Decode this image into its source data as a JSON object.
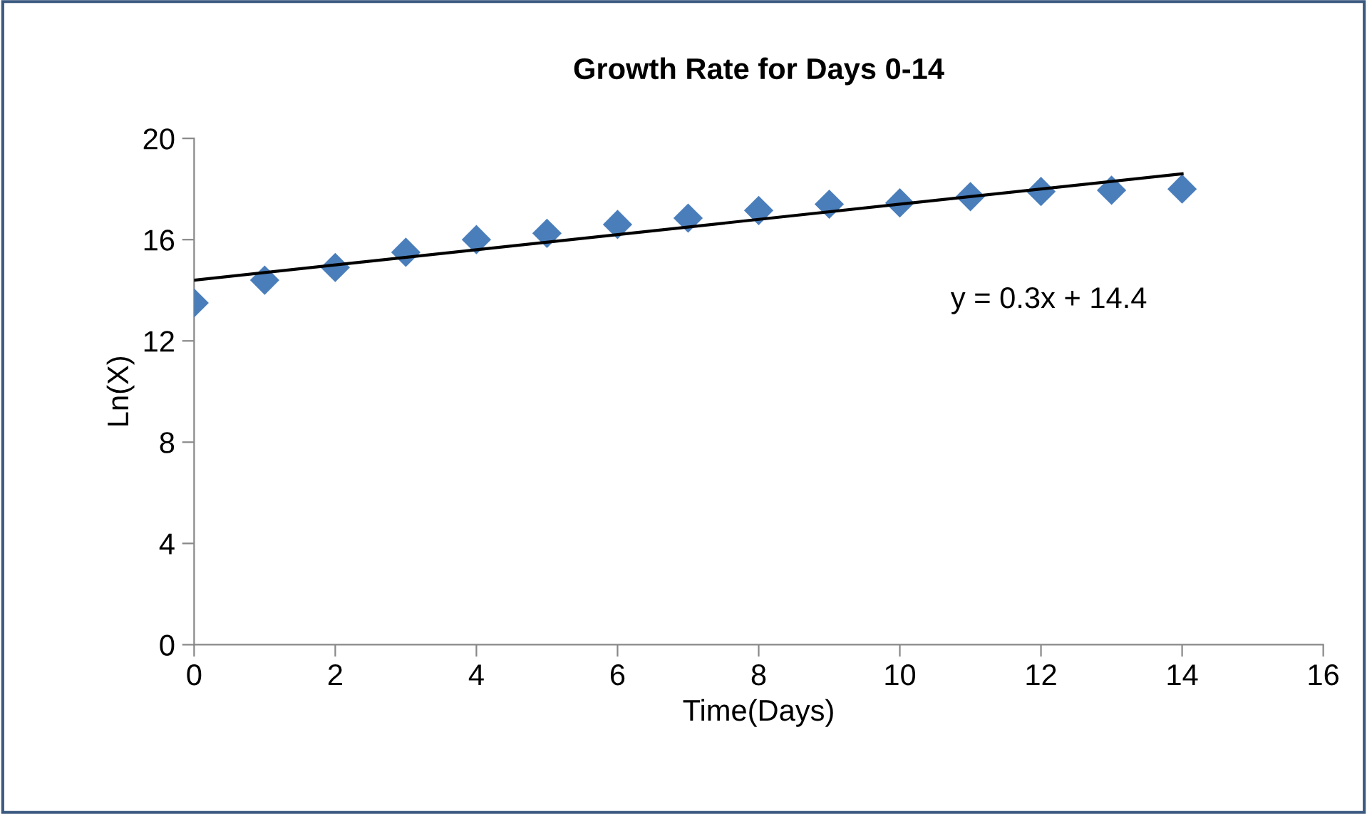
{
  "chart_data": {
    "type": "scatter",
    "title": "Growth Rate for Days 0-14",
    "xlabel": "Time(Days)",
    "ylabel": "Ln(X)",
    "x": [
      0,
      1,
      2,
      3,
      4,
      5,
      6,
      7,
      8,
      9,
      10,
      11,
      12,
      13,
      14
    ],
    "series": [
      {
        "color": "#4a7ebb",
        "marker": "diamond",
        "values": [
          13.5,
          14.4,
          14.9,
          15.5,
          16.0,
          16.25,
          16.6,
          16.85,
          17.15,
          17.4,
          17.45,
          17.7,
          17.9,
          17.95,
          18.0
        ]
      },
      {
        "type": "line",
        "color": "#000000",
        "marker": "none",
        "line_style": "solid",
        "x": [
          0,
          14
        ],
        "values": [
          14.4,
          18.6
        ]
      }
    ],
    "annotations": [
      "y = 0.3x + 14.4"
    ],
    "xlim": [
      0,
      16
    ],
    "xticks": [
      0,
      2,
      4,
      6,
      8,
      10,
      12,
      14,
      16
    ],
    "ylim": [
      0,
      20
    ],
    "yticks": [
      0,
      4,
      8,
      12,
      16,
      20
    ],
    "grid": false
  }
}
